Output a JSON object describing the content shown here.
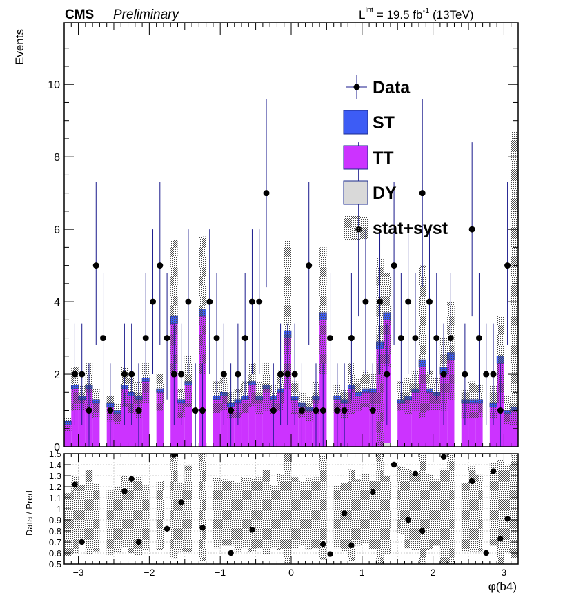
{
  "header": {
    "experiment": "CMS",
    "status": "Preliminary",
    "lumi_prefix": "L",
    "lumi_sup": "int",
    "lumi_mid": " = 19.5 fb",
    "lumi_exp": "-1",
    "lumi_suffix": " (13TeV)"
  },
  "chart_data": {
    "type": "bar",
    "subtype": "stacked-histogram-with-ratio",
    "xlabel": "φ(b4)",
    "ylabel": "Events",
    "ratio_ylabel": "Data / Pred",
    "xlim": [
      -3.2,
      3.2
    ],
    "ylim": [
      0,
      11.7
    ],
    "ratio_ylim": [
      0.5,
      1.5
    ],
    "x_ticks": [
      -3,
      -2,
      -1,
      0,
      1,
      2,
      3
    ],
    "y_ticks": [
      0,
      2,
      4,
      6,
      8,
      10
    ],
    "ratio_ticks": [
      0.5,
      0.6,
      0.7,
      0.8,
      0.9,
      1,
      1.1,
      1.2,
      1.3,
      1.4,
      1.5
    ],
    "ratio_grid": true,
    "legend_position": "top-right",
    "legend": [
      {
        "label": "Data",
        "kind": "marker"
      },
      {
        "label": "ST",
        "kind": "fill",
        "color": "#3d5cf5"
      },
      {
        "label": "TT",
        "kind": "fill",
        "color": "#cc33ff"
      },
      {
        "label": "DY",
        "kind": "fill",
        "color": "#d9d9d9"
      },
      {
        "label": "stat+syst",
        "kind": "hatch",
        "color": "#555555"
      }
    ],
    "colors": {
      "ST": "#3d5cf5",
      "TT": "#cc33ff",
      "DY": "#d9d9d9",
      "data": "#000000",
      "errbar": "#1a1a8c"
    },
    "nbins": 64,
    "bin_width": 0.1,
    "series": [
      {
        "name": "DY",
        "values": [
          0,
          0,
          0,
          0,
          0,
          0,
          0,
          0,
          0,
          0,
          0,
          0,
          0,
          0,
          0,
          0,
          0,
          0,
          0,
          0,
          0,
          0,
          0,
          0,
          0,
          0,
          0,
          0,
          0,
          0,
          0,
          0,
          0,
          0,
          0,
          0,
          0,
          0,
          0,
          0,
          0,
          0,
          0,
          0,
          0,
          0.1,
          0,
          0,
          0,
          0,
          0,
          0,
          0,
          0,
          0,
          0,
          0,
          0,
          0,
          0,
          0,
          0,
          0,
          0
        ]
      },
      {
        "name": "TT",
        "values": [
          0.6,
          1.6,
          1.3,
          1.6,
          1.2,
          0,
          1.1,
          0.9,
          1.6,
          1.4,
          1.3,
          1.8,
          0,
          1.5,
          0,
          3.4,
          1.2,
          1.7,
          0,
          3.6,
          0,
          1.3,
          1.4,
          1.1,
          1.2,
          1.3,
          1.7,
          1.3,
          1.6,
          1.3,
          1.5,
          3.0,
          1.3,
          1.1,
          1.0,
          1.3,
          3.5,
          0,
          1.3,
          1.2,
          1.6,
          1.4,
          1.5,
          1.5,
          2.7,
          3.4,
          0,
          1.2,
          1.3,
          1.5,
          2.2,
          1.5,
          1.4,
          2.0,
          2.4,
          0,
          1.2,
          1.2,
          1.2,
          0,
          1.1,
          2.3,
          0.9,
          1.0
        ]
      },
      {
        "name": "ST",
        "values": [
          0.1,
          0.1,
          0.1,
          0.1,
          0.1,
          0,
          0.1,
          0.1,
          0.1,
          0.1,
          0.1,
          0.1,
          0,
          0.1,
          0,
          0.2,
          0.1,
          0.1,
          0,
          0.2,
          0,
          0.1,
          0.1,
          0.1,
          0.1,
          0.1,
          0.1,
          0.1,
          0.1,
          0.1,
          0.1,
          0.2,
          0.1,
          0.1,
          0.1,
          0.1,
          0.2,
          0,
          0.1,
          0.1,
          0.1,
          0.1,
          0.1,
          0.1,
          0.2,
          0.2,
          0,
          0.1,
          0.1,
          0.1,
          0.2,
          0.1,
          0.1,
          0.2,
          0.2,
          0,
          0.1,
          0.1,
          0.1,
          0,
          0.1,
          0.2,
          0.1,
          0.1
        ]
      }
    ],
    "data": {
      "x": [
        -3.05,
        -2.95,
        -2.85,
        -2.75,
        -2.65,
        -2.55,
        -2.45,
        -2.35,
        -2.25,
        -2.15,
        -2.05,
        -1.95,
        -1.85,
        -1.75,
        -1.65,
        -1.55,
        -1.45,
        -1.35,
        -1.25,
        -1.15,
        -1.05,
        -0.95,
        -0.85,
        -0.75,
        -0.65,
        -0.55,
        -0.45,
        -0.35,
        -0.25,
        -0.15,
        -0.05,
        0.05,
        0.15,
        0.25,
        0.35,
        0.45,
        0.55,
        0.65,
        0.75,
        0.85,
        0.95,
        1.05,
        1.15,
        1.25,
        1.35,
        1.45,
        1.55,
        1.65,
        1.75,
        1.85,
        1.95,
        2.05,
        2.15,
        2.25,
        2.35,
        2.45,
        2.55,
        2.65,
        2.75,
        2.85,
        2.95,
        3.05
      ],
      "y": [
        2,
        2,
        1,
        5,
        3,
        1,
        0,
        2,
        2,
        1,
        3,
        4,
        5,
        3,
        2,
        2,
        4,
        1,
        1,
        4,
        3,
        2,
        1,
        2,
        3,
        4,
        4,
        7,
        1,
        2,
        2,
        2,
        1,
        5,
        1,
        1,
        3,
        1,
        1,
        3,
        6,
        4,
        1,
        4,
        2,
        5,
        3,
        4,
        3,
        7,
        4,
        3,
        2,
        3,
        0,
        2,
        6,
        3,
        2,
        2,
        1,
        5
      ],
      "err_up": [
        1.4,
        1.4,
        1.3,
        2.3,
        1.8,
        1.3,
        0,
        1.4,
        1.4,
        1.3,
        1.8,
        2.0,
        2.3,
        1.8,
        1.4,
        1.4,
        2.0,
        1.3,
        1.3,
        2.0,
        1.8,
        1.4,
        1.3,
        1.4,
        1.8,
        2.0,
        2.0,
        2.6,
        1.3,
        1.4,
        1.4,
        1.4,
        1.3,
        2.3,
        1.3,
        1.3,
        1.8,
        1.3,
        1.3,
        1.8,
        2.4,
        2.0,
        1.3,
        2.0,
        1.4,
        2.3,
        1.8,
        2.0,
        1.8,
        2.6,
        2.0,
        1.8,
        1.4,
        1.8,
        0,
        1.4,
        2.4,
        1.8,
        1.4,
        1.4,
        1.3,
        2.3
      ],
      "err_down": [
        1.4,
        1.4,
        1.0,
        2.2,
        1.7,
        1.0,
        0,
        1.4,
        1.4,
        1.0,
        1.7,
        2.0,
        2.2,
        1.7,
        1.4,
        1.4,
        2.0,
        1.0,
        1.0,
        2.0,
        1.7,
        1.4,
        1.0,
        1.4,
        1.7,
        2.0,
        2.0,
        2.6,
        1.0,
        1.4,
        1.4,
        1.4,
        1.0,
        2.2,
        1.0,
        1.0,
        1.7,
        1.0,
        1.0,
        1.7,
        2.4,
        2.0,
        1.0,
        2.0,
        1.4,
        2.2,
        1.7,
        2.0,
        1.7,
        2.6,
        2.0,
        1.7,
        1.4,
        1.7,
        0,
        1.4,
        2.4,
        1.7,
        1.4,
        1.4,
        1.0,
        2.2
      ]
    },
    "uncertainty": {
      "x": [
        -3.15,
        -3.05,
        -2.95,
        -2.85,
        -2.75,
        -2.65,
        -2.55,
        -2.45,
        -2.35,
        -2.25,
        -2.15,
        -2.05,
        -1.95,
        -1.85,
        -1.75,
        -1.65,
        -1.55,
        -1.45,
        -1.35,
        -1.25,
        -1.15,
        -1.05,
        -0.95,
        -0.85,
        -0.75,
        -0.65,
        -0.55,
        -0.45,
        -0.35,
        -0.25,
        -0.15,
        -0.05,
        0.05,
        0.15,
        0.25,
        0.35,
        0.45,
        0.55,
        0.65,
        0.75,
        0.85,
        0.95,
        1.05,
        1.15,
        1.25,
        1.35,
        1.45,
        1.55,
        1.65,
        1.75,
        1.85,
        1.95,
        2.05,
        2.15,
        2.25,
        2.35,
        2.45,
        2.55,
        2.65,
        2.75,
        2.85,
        2.95,
        3.05,
        3.15
      ],
      "low": [
        0.4,
        1.0,
        1.0,
        1.0,
        0.8,
        0,
        0.7,
        0.6,
        1.1,
        0.9,
        0.8,
        1.2,
        0,
        1.0,
        0,
        2.0,
        0.8,
        1.1,
        0,
        2.0,
        0,
        0.9,
        1.0,
        0.8,
        0.8,
        0.9,
        1.1,
        0.9,
        1.0,
        0.9,
        1.0,
        1.6,
        0.9,
        0.8,
        0.7,
        0.9,
        2.0,
        0,
        0.9,
        0.8,
        0.9,
        1.0,
        1.1,
        1.0,
        0,
        2.2,
        0,
        1.0,
        0.9,
        1.0,
        0.8,
        1.0,
        1.0,
        1.0,
        1.3,
        0,
        0.8,
        0.8,
        0.8,
        0,
        0.8,
        1.2,
        0.6,
        0.6
      ],
      "high": [
        0.8,
        2.2,
        1.7,
        2.3,
        1.6,
        0,
        1.4,
        1.2,
        2.2,
        1.9,
        1.8,
        2.3,
        0,
        2.0,
        0,
        5.7,
        1.6,
        2.5,
        0,
        5.8,
        0,
        1.8,
        1.9,
        1.5,
        1.6,
        1.8,
        2.3,
        1.8,
        2.3,
        1.7,
        2.1,
        5.7,
        1.8,
        1.5,
        1.4,
        1.8,
        5.5,
        0,
        1.7,
        1.6,
        2.3,
        1.9,
        2.1,
        2.0,
        5.2,
        4.8,
        0,
        1.8,
        1.9,
        2.1,
        5.0,
        2.1,
        1.9,
        3.0,
        4.0,
        0,
        1.6,
        1.8,
        1.7,
        0,
        1.7,
        3.6,
        1.4,
        8.7
      ]
    },
    "ratio": {
      "x": [
        -3.05,
        -2.95,
        -2.35,
        -2.25,
        -2.15,
        -1.75,
        -1.65,
        -1.55,
        -1.25,
        -0.85,
        -0.55,
        0.45,
        0.55,
        0.75,
        0.85,
        1.15,
        1.45,
        1.65,
        1.75,
        1.85,
        2.15,
        2.55,
        2.75,
        2.85,
        2.95,
        3.05
      ],
      "y": [
        1.22,
        0.7,
        1.16,
        1.27,
        0.7,
        0.82,
        1.49,
        1.06,
        0.83,
        0.6,
        0.81,
        0.68,
        0.59,
        0.96,
        0.67,
        1.15,
        1.4,
        0.9,
        1.32,
        0.8,
        1.47,
        1.25,
        0.6,
        1.34,
        0.73,
        0.91
      ]
    }
  }
}
